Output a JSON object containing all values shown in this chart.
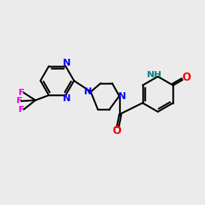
{
  "background_color": "#ebebeb",
  "bond_color": "#000000",
  "N_color": "#0000ff",
  "O_color": "#ff0000",
  "F_color": "#ee00ee",
  "NH_color": "#008080",
  "line_width": 1.8,
  "font_size": 10,
  "fig_size": [
    3.0,
    3.0
  ],
  "dpi": 100,
  "xlim": [
    0,
    12
  ],
  "ylim": [
    0,
    12
  ]
}
